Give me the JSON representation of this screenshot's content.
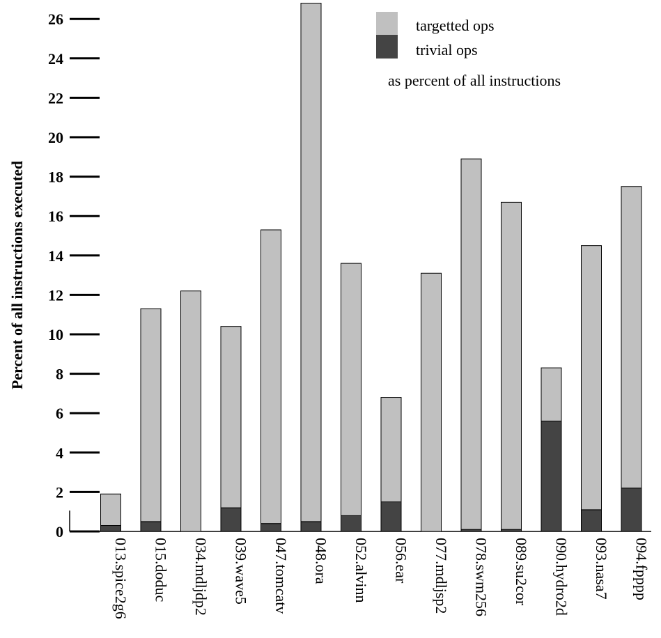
{
  "chart_data": {
    "type": "bar",
    "stacked": true,
    "ylabel": "Percent of all instructions executed",
    "xlabel": "",
    "ylim": [
      0,
      26.5
    ],
    "yticks": [
      0,
      2,
      4,
      6,
      8,
      10,
      12,
      14,
      16,
      18,
      20,
      22,
      24,
      26
    ],
    "categories": [
      "013.spice2g6",
      "015.doduc",
      "034.mdljdp2",
      "039.wave5",
      "047.tomcatv",
      "048.ora",
      "052.alvinn",
      "056.ear",
      "077.mdljsp2",
      "078.swm256",
      "089.su2cor",
      "090.hydro2d",
      "093.nasa7",
      "094.fpppp"
    ],
    "series": [
      {
        "name": "trivial ops",
        "color": "#444444",
        "values": [
          0.3,
          0.5,
          0.0,
          1.2,
          0.4,
          0.5,
          0.8,
          1.5,
          0.0,
          0.1,
          0.1,
          5.6,
          1.1,
          2.2
        ]
      },
      {
        "name": "targetted ops",
        "color": "#c0c0c0",
        "values": [
          1.6,
          10.8,
          12.2,
          9.2,
          14.9,
          26.3,
          12.8,
          5.3,
          13.1,
          18.8,
          16.6,
          2.7,
          13.4,
          15.3
        ]
      }
    ],
    "grid": false,
    "legend": {
      "position": "top-right",
      "note": "as percent of all instructions"
    }
  }
}
